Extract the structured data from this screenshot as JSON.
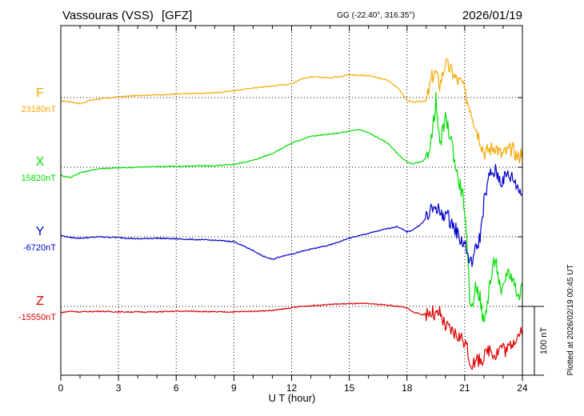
{
  "header": {
    "station": "Vassouras (VSS)",
    "institute": "[GFZ]",
    "coords": "GG (-22.40°, 316.35°)",
    "date": "2026/01/19"
  },
  "footer_note": "Plotted at 2026/02/19 00:45 UT",
  "colors": {
    "F": "#f5a800",
    "X": "#00dd00",
    "Y": "#0000cc",
    "Z": "#dd0000"
  },
  "chart_data": {
    "type": "line",
    "xlabel": "U T (hour)",
    "xlim": [
      0,
      24
    ],
    "xticks": [
      "0",
      "3",
      "6",
      "9",
      "12",
      "15",
      "18",
      "21",
      "24"
    ],
    "scale_bar": "100 nT",
    "series": [
      {
        "name": "F",
        "baseline": "23180nT",
        "x": [
          0,
          0.5,
          1,
          1.5,
          2,
          3,
          4,
          5,
          6,
          7,
          8,
          9,
          10,
          11,
          12,
          12.5,
          13,
          14,
          15,
          16,
          17,
          17.5,
          18,
          18.3,
          18.8,
          19,
          19.3,
          19.5,
          19.7,
          20,
          20.3,
          20.6,
          20.9,
          21,
          21.3,
          21.6,
          21.8,
          22,
          22.3,
          22.6,
          22.9,
          23.2,
          23.5,
          23.8,
          24
        ],
        "y": [
          -5,
          -6,
          -9,
          -4,
          -2,
          1,
          3,
          4,
          5,
          6,
          7,
          10,
          14,
          17,
          20,
          27,
          30,
          29,
          33,
          32,
          25,
          15,
          -4,
          -7,
          -5,
          -6,
          30,
          36,
          18,
          50,
          39,
          25,
          20,
          5,
          -15,
          -45,
          -60,
          -80,
          -75,
          -70,
          -83,
          -78,
          -75,
          -88,
          -75
        ]
      },
      {
        "name": "X",
        "baseline": "15820nT",
        "x": [
          0,
          0.5,
          1,
          1.5,
          2,
          3,
          4,
          5,
          6,
          7,
          8,
          9,
          10,
          11,
          12,
          12.5,
          13,
          14,
          15,
          15.5,
          16,
          17,
          17.5,
          18,
          18.3,
          18.8,
          19,
          19.3,
          19.5,
          19.7,
          20,
          20.3,
          20.6,
          20.9,
          21,
          21.3,
          21.6,
          21.8,
          22,
          22.3,
          22.6,
          22.9,
          23.2,
          23.5,
          23.8,
          24
        ],
        "y": [
          -12,
          -15,
          -8,
          -5,
          -2,
          -1,
          0,
          1,
          1,
          2,
          2,
          4,
          10,
          20,
          35,
          40,
          45,
          48,
          52,
          55,
          50,
          35,
          20,
          7,
          5,
          8,
          13,
          45,
          98,
          30,
          70,
          40,
          -10,
          -40,
          -60,
          -210,
          -170,
          -190,
          -230,
          -170,
          -130,
          -190,
          -150,
          -160,
          -190,
          -170
        ]
      },
      {
        "name": "Y",
        "baseline": "-6720nT",
        "x": [
          0,
          0.5,
          1,
          2,
          3,
          4,
          5,
          6,
          7,
          8,
          9,
          10,
          10.5,
          11,
          11.5,
          12,
          13,
          14,
          15,
          16,
          17,
          17.5,
          18,
          18.3,
          18.8,
          19,
          19.5,
          19.8,
          20,
          20.5,
          20.8,
          21,
          21.3,
          21.5,
          21.8,
          22,
          22.3,
          22.6,
          22.9,
          23.2,
          23.5,
          23.8,
          24
        ],
        "y": [
          2,
          -1,
          -2,
          0,
          -1,
          -3,
          -2,
          -3,
          -4,
          -5,
          -7,
          -20,
          -28,
          -33,
          -28,
          -25,
          -18,
          -12,
          -2,
          5,
          12,
          15,
          7,
          10,
          20,
          28,
          45,
          30,
          35,
          12,
          -5,
          -10,
          -40,
          -25,
          0,
          50,
          90,
          95,
          80,
          90,
          85,
          70,
          60
        ]
      },
      {
        "name": "Z",
        "baseline": "-15550nT",
        "x": [
          0,
          0.5,
          1,
          2,
          3,
          4,
          5,
          6,
          7,
          8,
          9,
          10,
          11,
          12,
          12.5,
          13,
          14,
          15,
          16,
          17,
          17.5,
          18,
          18.3,
          18.8,
          19,
          19.3,
          19.5,
          19.7,
          20,
          20.5,
          21,
          21.3,
          21.6,
          21.8,
          22,
          22.3,
          22.6,
          22.9,
          23.2,
          23.5,
          23.8,
          24
        ],
        "y": [
          -9,
          -7,
          -8,
          -7,
          -8,
          -8,
          -8,
          -7,
          -7,
          -8,
          -8,
          -7,
          -6,
          -2,
          0,
          1,
          3,
          4,
          4,
          2,
          0,
          -2,
          -8,
          -12,
          -10,
          -8,
          -15,
          -11,
          -30,
          -40,
          -50,
          -82,
          -82,
          -75,
          -76,
          -60,
          -70,
          -57,
          -65,
          -50,
          -40,
          -42
        ]
      }
    ]
  }
}
